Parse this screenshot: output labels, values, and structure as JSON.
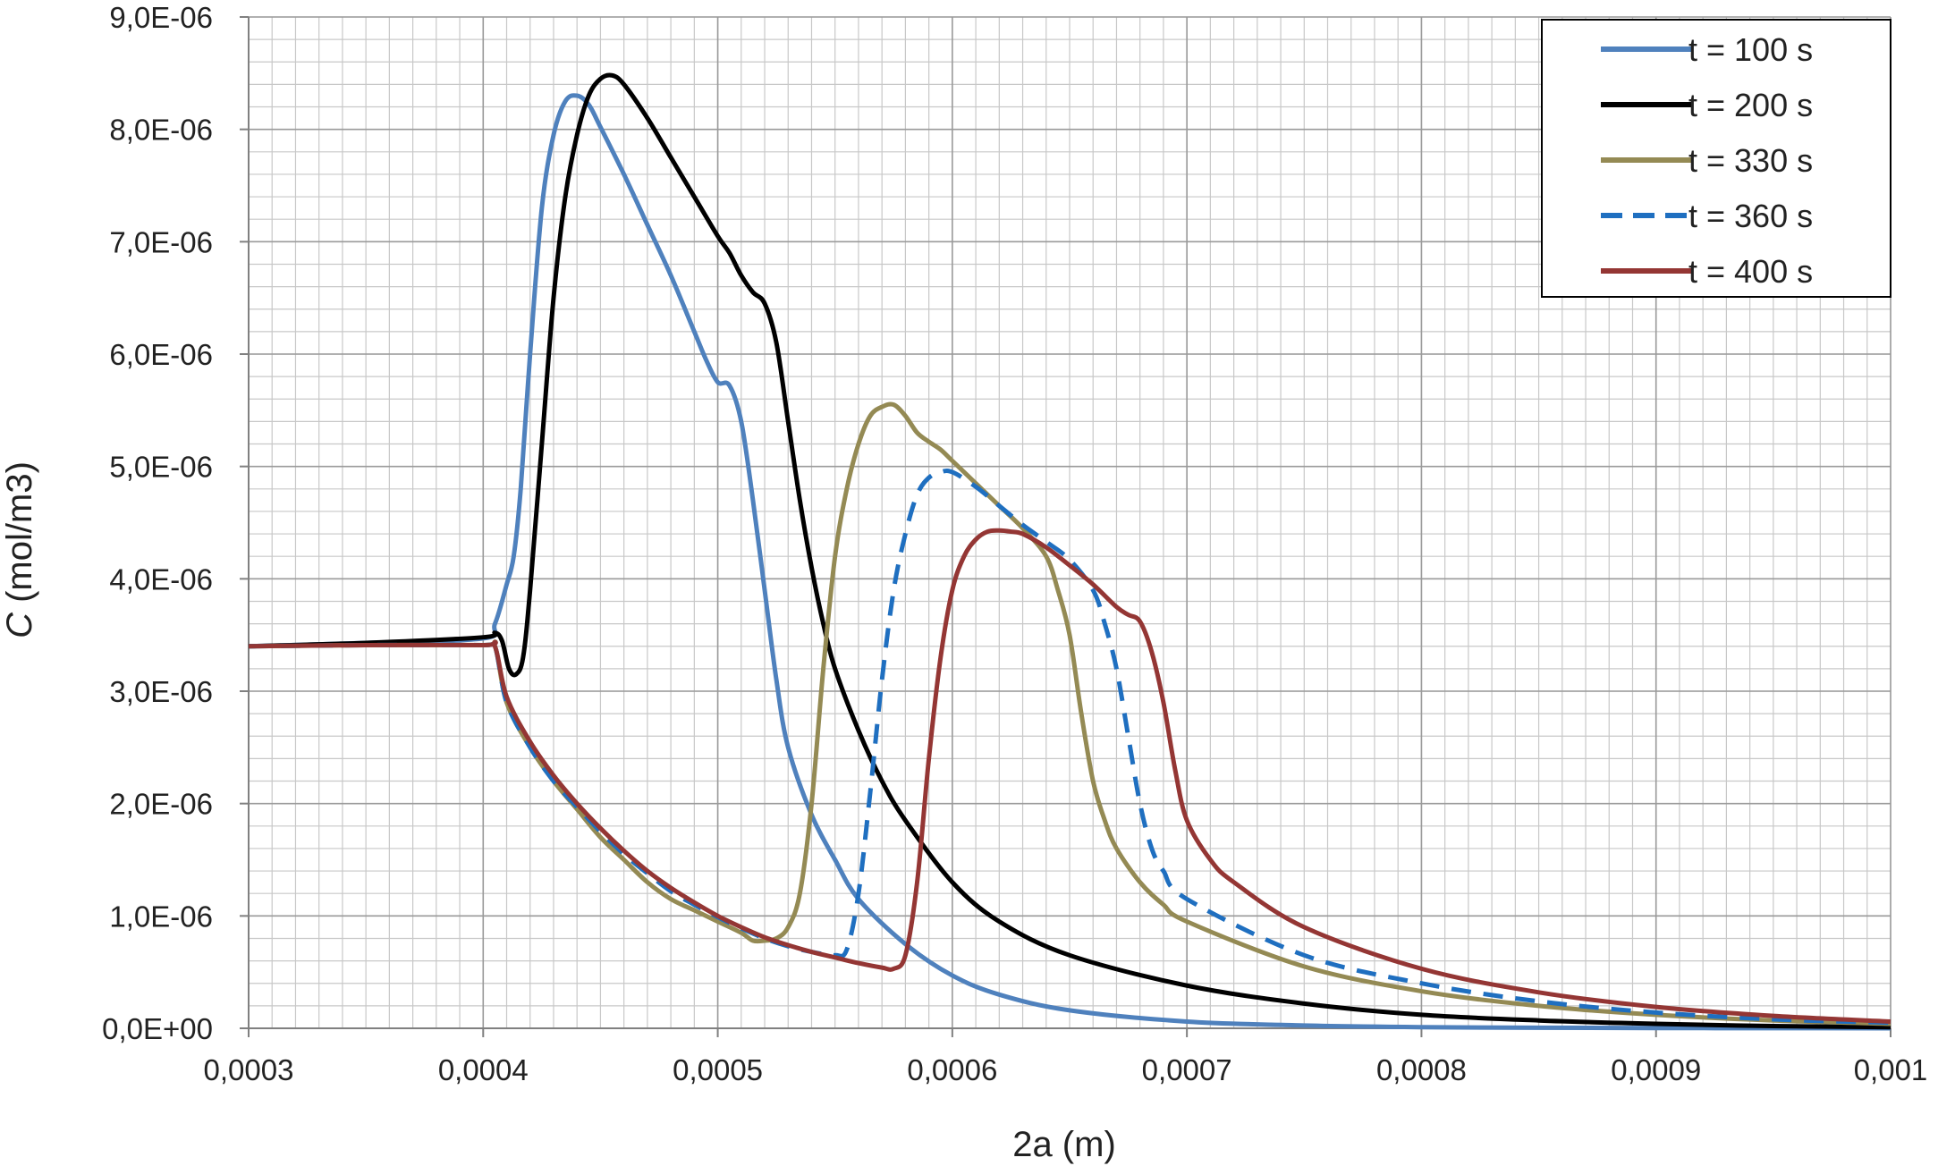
{
  "chart_data": {
    "type": "line",
    "title": "",
    "xlabel": "2a (m)",
    "ylabel_italic": "C",
    "ylabel_rest": " (mol/m3)",
    "xlim": [
      0.0003,
      0.001
    ],
    "ylim": [
      0,
      9e-06
    ],
    "x_ticks": [
      {
        "value": 0.0003,
        "label": "0,0003"
      },
      {
        "value": 0.0004,
        "label": "0,0004"
      },
      {
        "value": 0.0005,
        "label": "0,0005"
      },
      {
        "value": 0.0006,
        "label": "0,0006"
      },
      {
        "value": 0.0007,
        "label": "0,0007"
      },
      {
        "value": 0.0008,
        "label": "0,0008"
      },
      {
        "value": 0.0009,
        "label": "0,0009"
      },
      {
        "value": 0.001,
        "label": "0,001"
      }
    ],
    "y_ticks": [
      {
        "value": 0,
        "label": "0,0E+00"
      },
      {
        "value": 1e-06,
        "label": "1,0E-06"
      },
      {
        "value": 2e-06,
        "label": "2,0E-06"
      },
      {
        "value": 3e-06,
        "label": "3,0E-06"
      },
      {
        "value": 4e-06,
        "label": "4,0E-06"
      },
      {
        "value": 5e-06,
        "label": "5,0E-06"
      },
      {
        "value": 6e-06,
        "label": "6,0E-06"
      },
      {
        "value": 7e-06,
        "label": "7,0E-06"
      },
      {
        "value": 8e-06,
        "label": "8,0E-06"
      },
      {
        "value": 9e-06,
        "label": "9,0E-06"
      }
    ],
    "grid": {
      "major": true,
      "minor_x_step": 1e-05,
      "minor_y_step": 2e-07
    },
    "legend_position": "top-right",
    "series": [
      {
        "name": "t = 100 s",
        "color": "#4f81bd",
        "dashed": false,
        "points": [
          [
            0.0003,
            3.4e-06
          ],
          [
            0.00035,
            3.43e-06
          ],
          [
            0.0004,
            3.47e-06
          ],
          [
            0.000405,
            3.6e-06
          ],
          [
            0.00041,
            3.95e-06
          ],
          [
            0.000413,
            4.2e-06
          ],
          [
            0.000416,
            4.8e-06
          ],
          [
            0.00042,
            6e-06
          ],
          [
            0.000425,
            7.3e-06
          ],
          [
            0.00043,
            7.95e-06
          ],
          [
            0.000435,
            8.25e-06
          ],
          [
            0.00044,
            8.3e-06
          ],
          [
            0.000445,
            8.22e-06
          ],
          [
            0.00045,
            8.02e-06
          ],
          [
            0.00046,
            7.6e-06
          ],
          [
            0.00047,
            7.15e-06
          ],
          [
            0.00048,
            6.7e-06
          ],
          [
            0.00049,
            6.2e-06
          ],
          [
            0.000495,
            5.95e-06
          ],
          [
            0.0005,
            5.75e-06
          ],
          [
            0.000505,
            5.72e-06
          ],
          [
            0.00051,
            5.4e-06
          ],
          [
            0.000515,
            4.7e-06
          ],
          [
            0.00052,
            3.9e-06
          ],
          [
            0.000525,
            3.1e-06
          ],
          [
            0.00053,
            2.5e-06
          ],
          [
            0.00054,
            1.9e-06
          ],
          [
            0.00055,
            1.5e-06
          ],
          [
            0.00056,
            1.15e-06
          ],
          [
            0.00058,
            7.5e-07
          ],
          [
            0.0006,
            4.7e-07
          ],
          [
            0.00062,
            3e-07
          ],
          [
            0.00065,
            1.6e-07
          ],
          [
            0.0007,
            6e-08
          ],
          [
            0.00075,
            2.5e-08
          ],
          [
            0.0008,
            1e-08
          ],
          [
            0.00085,
            5e-09
          ],
          [
            0.0009,
            2e-09
          ],
          [
            0.00095,
            1e-09
          ],
          [
            0.001,
            0
          ]
        ]
      },
      {
        "name": "t = 200 s",
        "color": "#000000",
        "dashed": false,
        "points": [
          [
            0.0003,
            3.4e-06
          ],
          [
            0.00035,
            3.43e-06
          ],
          [
            0.0004,
            3.48e-06
          ],
          [
            0.000405,
            3.52e-06
          ],
          [
            0.000408,
            3.45e-06
          ],
          [
            0.000411,
            3.2e-06
          ],
          [
            0.000414,
            3.15e-06
          ],
          [
            0.000417,
            3.3e-06
          ],
          [
            0.00042,
            3.9e-06
          ],
          [
            0.000425,
            5.2e-06
          ],
          [
            0.00043,
            6.5e-06
          ],
          [
            0.000435,
            7.4e-06
          ],
          [
            0.00044,
            7.95e-06
          ],
          [
            0.000445,
            8.3e-06
          ],
          [
            0.00045,
            8.45e-06
          ],
          [
            0.000455,
            8.48e-06
          ],
          [
            0.00046,
            8.4e-06
          ],
          [
            0.00047,
            8.1e-06
          ],
          [
            0.00048,
            7.75e-06
          ],
          [
            0.00049,
            7.4e-06
          ],
          [
            0.0005,
            7.05e-06
          ],
          [
            0.000505,
            6.9e-06
          ],
          [
            0.00051,
            6.7e-06
          ],
          [
            0.000515,
            6.55e-06
          ],
          [
            0.00052,
            6.45e-06
          ],
          [
            0.000525,
            6.1e-06
          ],
          [
            0.00053,
            5.4e-06
          ],
          [
            0.000535,
            4.7e-06
          ],
          [
            0.00054,
            4.1e-06
          ],
          [
            0.000545,
            3.6e-06
          ],
          [
            0.00055,
            3.2e-06
          ],
          [
            0.00056,
            2.65e-06
          ],
          [
            0.00057,
            2.2e-06
          ],
          [
            0.00058,
            1.85e-06
          ],
          [
            0.0006,
            1.3e-06
          ],
          [
            0.00062,
            9.5e-07
          ],
          [
            0.00065,
            6.5e-07
          ],
          [
            0.0007,
            3.8e-07
          ],
          [
            0.00075,
            2.2e-07
          ],
          [
            0.0008,
            1.2e-07
          ],
          [
            0.00085,
            7e-08
          ],
          [
            0.0009,
            4e-08
          ],
          [
            0.00095,
            2e-08
          ],
          [
            0.001,
            1e-08
          ]
        ]
      },
      {
        "name": "t = 330 s",
        "color": "#948a54",
        "dashed": false,
        "points": [
          [
            0.0003,
            3.4e-06
          ],
          [
            0.00035,
            3.41e-06
          ],
          [
            0.0004,
            3.41e-06
          ],
          [
            0.000405,
            3.4e-06
          ],
          [
            0.00041,
            2.9e-06
          ],
          [
            0.00042,
            2.5e-06
          ],
          [
            0.00043,
            2.2e-06
          ],
          [
            0.00044,
            1.95e-06
          ],
          [
            0.00045,
            1.7e-06
          ],
          [
            0.00046,
            1.5e-06
          ],
          [
            0.00047,
            1.3e-06
          ],
          [
            0.00048,
            1.15e-06
          ],
          [
            0.00049,
            1.05e-06
          ],
          [
            0.0005,
            9.5e-07
          ],
          [
            0.00051,
            8.5e-07
          ],
          [
            0.000515,
            7.8e-07
          ],
          [
            0.00052,
            7.8e-07
          ],
          [
            0.000525,
            8e-07
          ],
          [
            0.00053,
            9e-07
          ],
          [
            0.000535,
            1.2e-06
          ],
          [
            0.00054,
            2e-06
          ],
          [
            0.000545,
            3.2e-06
          ],
          [
            0.00055,
            4.2e-06
          ],
          [
            0.000555,
            4.8e-06
          ],
          [
            0.00056,
            5.2e-06
          ],
          [
            0.000565,
            5.45e-06
          ],
          [
            0.00057,
            5.53e-06
          ],
          [
            0.000575,
            5.55e-06
          ],
          [
            0.00058,
            5.45e-06
          ],
          [
            0.000585,
            5.3e-06
          ],
          [
            0.00059,
            5.22e-06
          ],
          [
            0.000595,
            5.15e-06
          ],
          [
            0.0006,
            5.05e-06
          ],
          [
            0.00061,
            4.85e-06
          ],
          [
            0.00062,
            4.65e-06
          ],
          [
            0.00063,
            4.45e-06
          ],
          [
            0.00064,
            4.2e-06
          ],
          [
            0.000645,
            3.9e-06
          ],
          [
            0.00065,
            3.5e-06
          ],
          [
            0.000655,
            2.8e-06
          ],
          [
            0.00066,
            2.2e-06
          ],
          [
            0.000665,
            1.85e-06
          ],
          [
            0.00067,
            1.6e-06
          ],
          [
            0.00068,
            1.3e-06
          ],
          [
            0.00069,
            1.1e-06
          ],
          [
            0.0007,
            9.5e-07
          ],
          [
            0.00075,
            5.5e-07
          ],
          [
            0.0008,
            3.3e-07
          ],
          [
            0.00085,
            2e-07
          ],
          [
            0.0009,
            1.2e-07
          ],
          [
            0.00095,
            7e-08
          ],
          [
            0.001,
            4e-08
          ]
        ]
      },
      {
        "name": "t = 360 s",
        "color": "#1f6fc0",
        "dashed": true,
        "points": [
          [
            0.0003,
            3.4e-06
          ],
          [
            0.00035,
            3.41e-06
          ],
          [
            0.0004,
            3.41e-06
          ],
          [
            0.000405,
            3.4e-06
          ],
          [
            0.00041,
            2.9e-06
          ],
          [
            0.00042,
            2.5e-06
          ],
          [
            0.00043,
            2.2e-06
          ],
          [
            0.00044,
            1.97e-06
          ],
          [
            0.00045,
            1.75e-06
          ],
          [
            0.00046,
            1.55e-06
          ],
          [
            0.00047,
            1.38e-06
          ],
          [
            0.00048,
            1.22e-06
          ],
          [
            0.00049,
            1.1e-06
          ],
          [
            0.0005,
            9.9e-07
          ],
          [
            0.00051,
            8.9e-07
          ],
          [
            0.00052,
            8e-07
          ],
          [
            0.00053,
            7.3e-07
          ],
          [
            0.00054,
            6.8e-07
          ],
          [
            0.00055,
            6.5e-07
          ],
          [
            0.000555,
            7e-07
          ],
          [
            0.00056,
            1.2e-06
          ],
          [
            0.000565,
            2.1e-06
          ],
          [
            0.00057,
            3.1e-06
          ],
          [
            0.000575,
            3.9e-06
          ],
          [
            0.00058,
            4.4e-06
          ],
          [
            0.000585,
            4.75e-06
          ],
          [
            0.00059,
            4.9e-06
          ],
          [
            0.000595,
            4.95e-06
          ],
          [
            0.0006,
            4.95e-06
          ],
          [
            0.00061,
            4.82e-06
          ],
          [
            0.00062,
            4.65e-06
          ],
          [
            0.00063,
            4.48e-06
          ],
          [
            0.00064,
            4.33e-06
          ],
          [
            0.00065,
            4.17e-06
          ],
          [
            0.00066,
            3.9e-06
          ],
          [
            0.000665,
            3.6e-06
          ],
          [
            0.00067,
            3.2e-06
          ],
          [
            0.000675,
            2.6e-06
          ],
          [
            0.00068,
            2e-06
          ],
          [
            0.000685,
            1.6e-06
          ],
          [
            0.00069,
            1.4e-06
          ],
          [
            0.0007,
            1.15e-06
          ],
          [
            0.00075,
            6.5e-07
          ],
          [
            0.0008,
            4e-07
          ],
          [
            0.00085,
            2.4e-07
          ],
          [
            0.0009,
            1.4e-07
          ],
          [
            0.00095,
            8e-08
          ],
          [
            0.001,
            5e-08
          ]
        ]
      },
      {
        "name": "t = 400 s",
        "color": "#943634",
        "dashed": false,
        "points": [
          [
            0.0003,
            3.4e-06
          ],
          [
            0.00035,
            3.41e-06
          ],
          [
            0.0004,
            3.41e-06
          ],
          [
            0.000405,
            3.4e-06
          ],
          [
            0.00041,
            2.95e-06
          ],
          [
            0.00042,
            2.55e-06
          ],
          [
            0.00043,
            2.25e-06
          ],
          [
            0.00044,
            2e-06
          ],
          [
            0.00045,
            1.78e-06
          ],
          [
            0.00046,
            1.58e-06
          ],
          [
            0.00047,
            1.4e-06
          ],
          [
            0.00048,
            1.25e-06
          ],
          [
            0.00049,
            1.12e-06
          ],
          [
            0.0005,
            1e-06
          ],
          [
            0.00051,
            9e-07
          ],
          [
            0.00052,
            8.1e-07
          ],
          [
            0.00053,
            7.4e-07
          ],
          [
            0.00054,
            6.8e-07
          ],
          [
            0.00055,
            6.3e-07
          ],
          [
            0.00056,
            5.8e-07
          ],
          [
            0.00057,
            5.4e-07
          ],
          [
            0.000575,
            5.3e-07
          ],
          [
            0.00058,
            6.5e-07
          ],
          [
            0.000585,
            1.3e-06
          ],
          [
            0.00059,
            2.4e-06
          ],
          [
            0.000595,
            3.3e-06
          ],
          [
            0.0006,
            3.9e-06
          ],
          [
            0.000605,
            4.2e-06
          ],
          [
            0.00061,
            4.35e-06
          ],
          [
            0.000615,
            4.42e-06
          ],
          [
            0.00062,
            4.43e-06
          ],
          [
            0.000625,
            4.42e-06
          ],
          [
            0.00063,
            4.4e-06
          ],
          [
            0.00064,
            4.28e-06
          ],
          [
            0.00065,
            4.12e-06
          ],
          [
            0.00066,
            3.95e-06
          ],
          [
            0.00067,
            3.75e-06
          ],
          [
            0.000675,
            3.68e-06
          ],
          [
            0.00068,
            3.62e-06
          ],
          [
            0.000685,
            3.35e-06
          ],
          [
            0.00069,
            2.9e-06
          ],
          [
            0.000695,
            2.3e-06
          ],
          [
            0.0007,
            1.85e-06
          ],
          [
            0.00071,
            1.5e-06
          ],
          [
            0.00072,
            1.3e-06
          ],
          [
            0.00075,
            9e-07
          ],
          [
            0.0008,
            5.3e-07
          ],
          [
            0.00085,
            3.2e-07
          ],
          [
            0.0009,
            1.9e-07
          ],
          [
            0.00095,
            1.1e-07
          ],
          [
            0.001,
            6e-08
          ]
        ]
      }
    ]
  }
}
